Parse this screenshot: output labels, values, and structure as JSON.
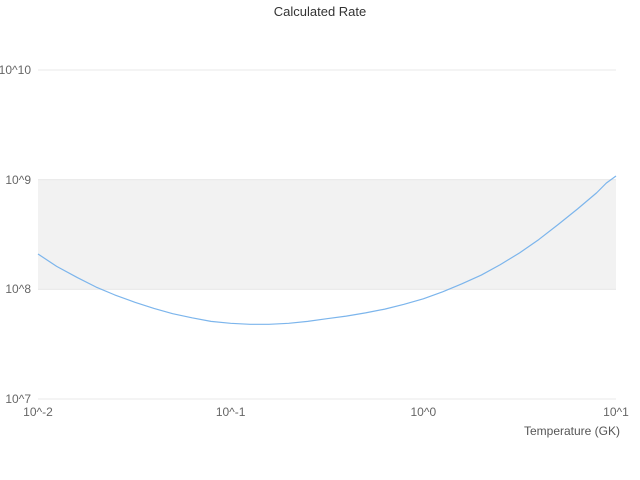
{
  "chart_data": {
    "type": "line",
    "title": "Calculated Rate",
    "xlabel": "Temperature (GK)",
    "ylabel": "",
    "x_scale": "log",
    "y_scale": "log",
    "xlim": [
      0.01,
      10
    ],
    "ylim": [
      10000000.0,
      10000000000.0
    ],
    "x_ticks": [
      0.01,
      0.1,
      1,
      10
    ],
    "x_tick_labels": [
      "10^-2",
      "10^-1",
      "10^0",
      "10^1"
    ],
    "y_ticks": [
      10000000.0,
      100000000.0,
      1000000000.0,
      10000000000.0
    ],
    "y_tick_labels": [
      "10^7",
      "10^8",
      "10^9",
      "10^10"
    ],
    "grid": "horizontal",
    "legend": "none",
    "band": {
      "from": 100000000.0,
      "to": 1000000000.0,
      "color": "#f2f2f2"
    },
    "colors": {
      "line": "#7cb5ec",
      "gridline": "#e8e8e8",
      "title_text": "#333333",
      "tick_text": "#666666",
      "background": "#ffffff"
    },
    "series": [
      {
        "name": "calculated-rate",
        "x": [
          0.01,
          0.0125,
          0.016,
          0.02,
          0.025,
          0.032,
          0.04,
          0.05,
          0.063,
          0.079,
          0.1,
          0.126,
          0.158,
          0.2,
          0.251,
          0.316,
          0.398,
          0.501,
          0.631,
          0.794,
          1.0,
          1.26,
          1.58,
          2.0,
          2.51,
          3.16,
          3.98,
          5.01,
          6.31,
          7.94,
          8.9,
          10.0
        ],
        "y": [
          210000000.0,
          162000000.0,
          128000000.0,
          105000000.0,
          89000000.0,
          76000000.0,
          67000000.0,
          60000000.0,
          55000000.0,
          51000000.0,
          49000000.0,
          48000000.0,
          48000000.0,
          49000000.0,
          51000000.0,
          54000000.0,
          57000000.0,
          61000000.0,
          66000000.0,
          73000000.0,
          82000000.0,
          95000000.0,
          112000000.0,
          135000000.0,
          168000000.0,
          215000000.0,
          285000000.0,
          390000000.0,
          540000000.0,
          760000000.0,
          930000000.0,
          1080000000.0
        ]
      }
    ]
  }
}
